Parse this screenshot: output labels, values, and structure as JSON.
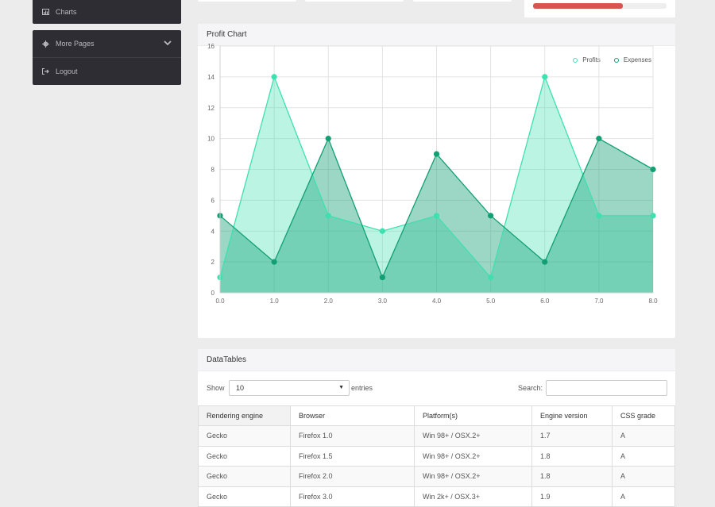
{
  "sidebar": {
    "top_item": {
      "label": "Charts",
      "icon": "bar-chart-icon"
    },
    "menu_items": [
      {
        "label": "More Pages",
        "icon": "gear-icon"
      },
      {
        "label": "Logout",
        "icon": "logout-icon"
      }
    ]
  },
  "progress": {
    "value_percent": 67,
    "color": "#d9534f"
  },
  "chart_panel": {
    "title": "Profit Chart"
  },
  "chart_data": {
    "type": "area",
    "x": [
      0,
      1,
      2,
      3,
      4,
      5,
      6,
      7,
      8
    ],
    "x_tick_labels": [
      "0.0",
      "1.0",
      "2.0",
      "3.0",
      "4.0",
      "5.0",
      "6.0",
      "7.0",
      "8.0"
    ],
    "y_ticks": [
      0,
      2,
      4,
      6,
      8,
      10,
      12,
      14,
      16
    ],
    "ylim": [
      0,
      16
    ],
    "xlim": [
      0,
      8
    ],
    "grid": true,
    "legend_position": "top-right",
    "series": [
      {
        "name": "Profits",
        "values": [
          1,
          14,
          5,
          4,
          5,
          1,
          14,
          5,
          5
        ],
        "color": "#3fe0b0"
      },
      {
        "name": "Expenses",
        "values": [
          5,
          2,
          10,
          1,
          9,
          5,
          2,
          10,
          8
        ],
        "color": "#139f74"
      }
    ]
  },
  "table_panel": {
    "title": "DataTables",
    "show_label": "Show",
    "page_size": "10",
    "entries_label": "entries",
    "search_label": "Search:",
    "columns": [
      "Rendering engine",
      "Browser",
      "Platform(s)",
      "Engine version",
      "CSS grade"
    ],
    "rows": [
      [
        "Gecko",
        "Firefox 1.0",
        "Win 98+ / OSX.2+",
        "1.7",
        "A"
      ],
      [
        "Gecko",
        "Firefox 1.5",
        "Win 98+ / OSX.2+",
        "1.8",
        "A"
      ],
      [
        "Gecko",
        "Firefox 2.0",
        "Win 98+ / OSX.2+",
        "1.8",
        "A"
      ],
      [
        "Gecko",
        "Firefox 3.0",
        "Win 2k+ / OSX.3+",
        "1.9",
        "A"
      ]
    ]
  }
}
